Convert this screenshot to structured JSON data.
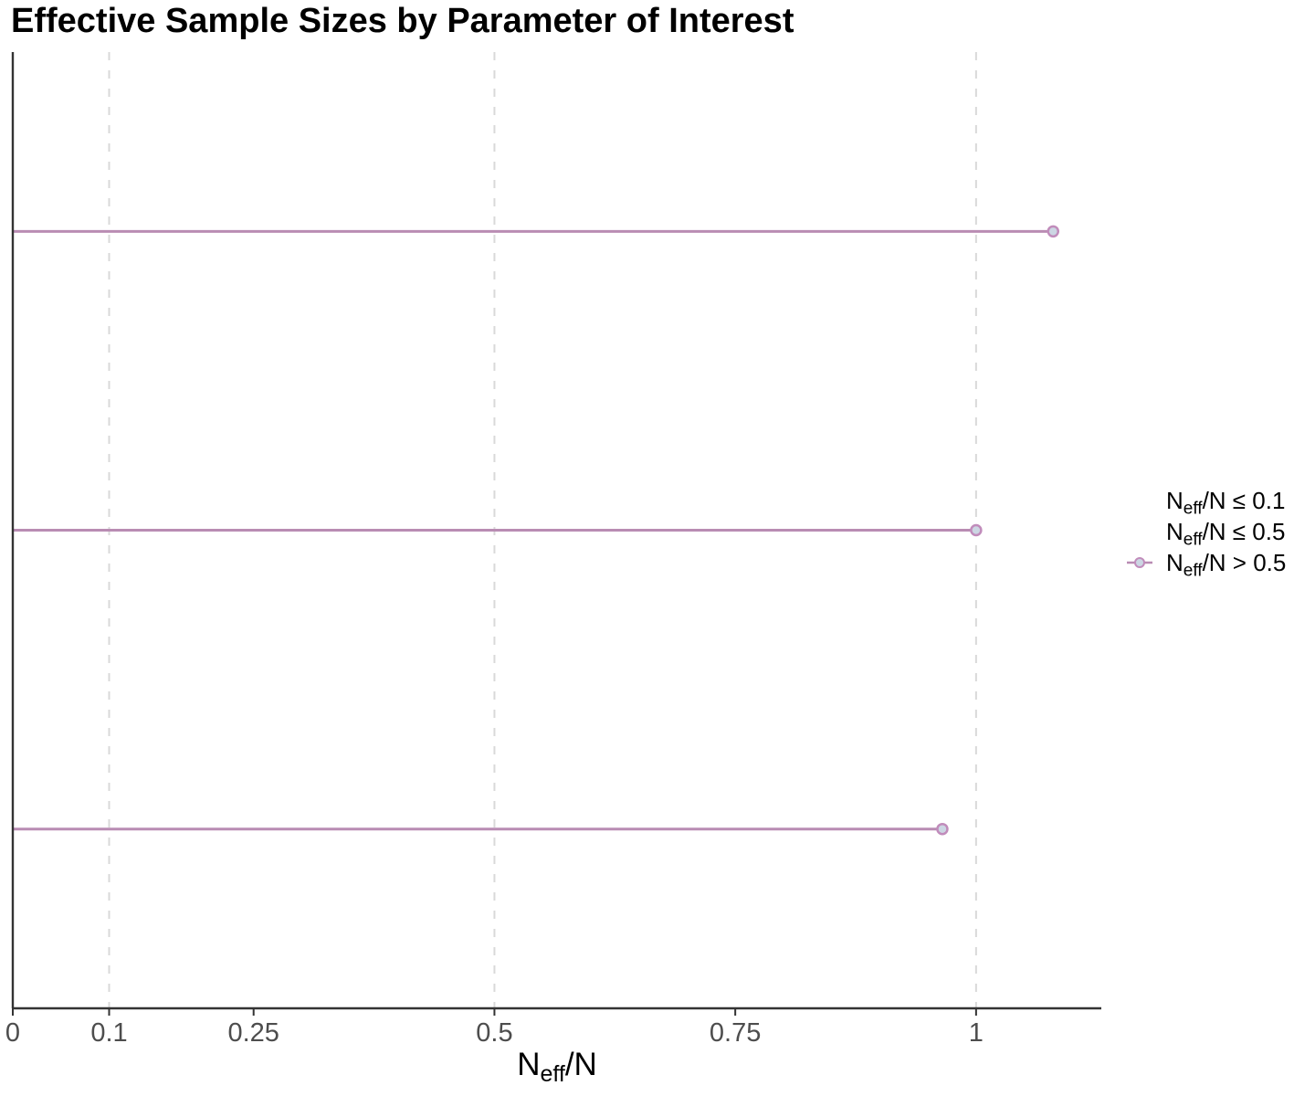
{
  "chart_data": {
    "type": "scatter",
    "subtype": "horizontal-lollipop",
    "title": "Effective Sample Sizes by Parameter of Interest",
    "xlabel": {
      "pre": "N",
      "sub": "eff",
      "post": "/N"
    },
    "xlim": [
      0,
      1.13
    ],
    "x_ticks": [
      {
        "value": 0,
        "label": "0"
      },
      {
        "value": 0.1,
        "label": "0.1"
      },
      {
        "value": 0.25,
        "label": "0.25"
      },
      {
        "value": 0.5,
        "label": "0.5"
      },
      {
        "value": 0.75,
        "label": "0.75"
      },
      {
        "value": 1,
        "label": "1"
      }
    ],
    "threshold_gridlines": [
      0.1,
      0.5,
      1
    ],
    "grid": "vertical dashed lines at thresholds only",
    "y_tick_labels": [],
    "rows": [
      {
        "position": "top",
        "neff_ratio": 1.08,
        "category": "Neff/N > 0.5"
      },
      {
        "position": "middle",
        "neff_ratio": 1.0,
        "category": "Neff/N > 0.5"
      },
      {
        "position": "bottom",
        "neff_ratio": 0.965,
        "category": "Neff/N > 0.5"
      }
    ],
    "legend_position": "right-center"
  },
  "legend": {
    "entries": [
      {
        "pre": "N",
        "sub": "eff",
        "rest": "/N ≤ 0.1",
        "has_key": false
      },
      {
        "pre": "N",
        "sub": "eff",
        "rest": "/N ≤ 0.5",
        "has_key": false
      },
      {
        "pre": "N",
        "sub": "eff",
        "rest": "/N > 0.5",
        "has_key": true
      }
    ]
  },
  "colors": {
    "title": "#000000",
    "stem": "#b98cb3",
    "dot_fill": "#ccd6e3",
    "dot_stroke": "#c18cbb",
    "axis_line": "#333333",
    "tick_label": "#4d4d4d",
    "gridline": "#d9d9d9",
    "legend_text": "#000000",
    "xlabel_color": "#000000",
    "background": "#ffffff"
  }
}
